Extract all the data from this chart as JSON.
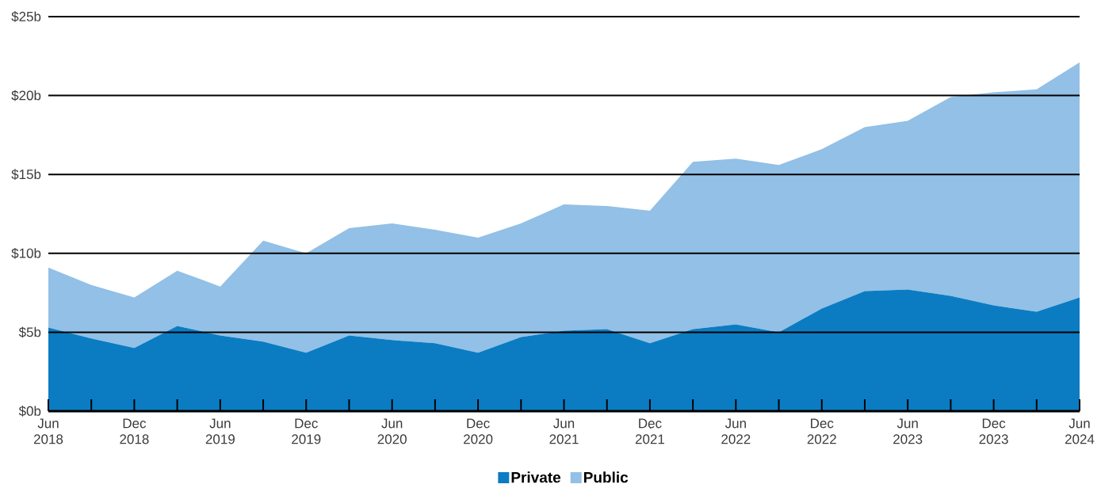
{
  "chart_data": {
    "type": "area",
    "stacked": true,
    "categories": [
      "Jun 2018",
      null,
      "Dec 2018",
      null,
      "Jun 2019",
      null,
      "Dec 2019",
      null,
      "Jun 2020",
      null,
      "Dec 2020",
      null,
      "Jun 2021",
      null,
      "Dec 2021",
      null,
      "Jun 2022",
      null,
      "Dec 2022",
      null,
      "Jun 2023",
      null,
      "Dec 2023",
      null,
      "Jun 2024"
    ],
    "series": [
      {
        "name": "Private",
        "color": "#0b7cc2",
        "values": [
          5.3,
          4.6,
          4.0,
          5.4,
          4.8,
          4.4,
          3.7,
          4.8,
          4.5,
          4.3,
          3.7,
          4.7,
          5.1,
          5.2,
          4.3,
          5.2,
          5.5,
          5.0,
          6.5,
          7.6,
          7.7,
          7.3,
          6.7,
          6.3,
          7.2
        ]
      },
      {
        "name": "Public",
        "color": "#92c0e6",
        "values": [
          3.8,
          3.4,
          3.2,
          3.5,
          3.1,
          6.4,
          6.3,
          6.8,
          7.4,
          7.2,
          7.3,
          7.2,
          8.0,
          7.8,
          8.4,
          10.6,
          10.5,
          10.6,
          10.1,
          10.4,
          10.7,
          12.6,
          13.5,
          14.1,
          14.9
        ]
      }
    ],
    "ylim": [
      0,
      25
    ],
    "yticks": [
      {
        "value": 0,
        "label": "$0b"
      },
      {
        "value": 5,
        "label": "$5b"
      },
      {
        "value": 10,
        "label": "$10b"
      },
      {
        "value": 15,
        "label": "$15b"
      },
      {
        "value": 20,
        "label": "$20b"
      },
      {
        "value": 25,
        "label": "$25b"
      }
    ],
    "grid": "y",
    "legend": "bottom"
  }
}
